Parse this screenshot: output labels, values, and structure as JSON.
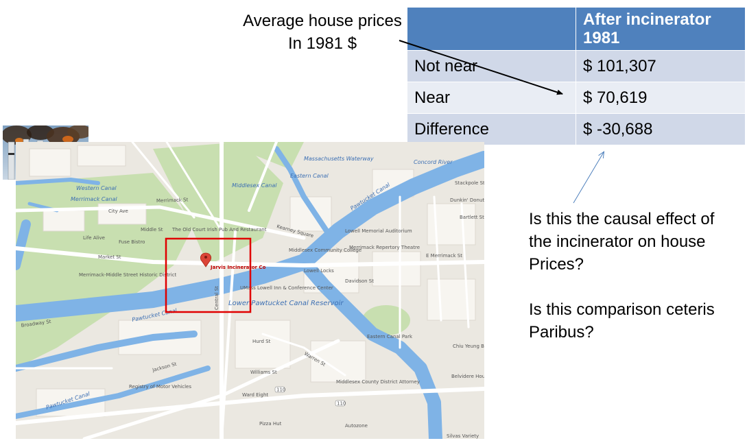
{
  "annotation": {
    "line1": "Average house prices",
    "line2": "In 1981 $"
  },
  "table": {
    "header_col1": "",
    "header_col2": "After incinerator 1981",
    "rows": [
      {
        "label": "Not near",
        "value": "$ 101,307"
      },
      {
        "label": "Near",
        "value": "$ 70,619"
      },
      {
        "label": "Difference",
        "value": "$ -30,688"
      }
    ],
    "header_color": "#4f81bd",
    "row_color_a": "#d0d8e8",
    "row_color_b": "#e9edf4"
  },
  "questions": {
    "q1": "Is this the causal effect of the incinerator on house Prices?",
    "q2": "Is this comparison ceteris Paribus?"
  },
  "map": {
    "highlight_color": "#e00000",
    "water_color": "#7fb3e6",
    "park_color": "#c8dfb0",
    "labels": {
      "concord_river": "Concord River",
      "mass_waterway": "Massachusetts Waterway",
      "eastern_canal": "Eastern Canal",
      "middlesex_canal": "Middlesex Canal",
      "merrimack_canal": "Merrimack Canal",
      "western_canal": "Western Canal",
      "pawtucket_canal_1": "Pawtucket Canal",
      "pawtucket_canal_2": "Pawtucket Canal",
      "pawtucket_canal_3": "Pawtucket Canal",
      "lower_pawtucket": "Lower Pawtucket Canal Reservoir",
      "jarvis": "Jarvis Incinerator Co",
      "merrimack_st": "Merrimack St",
      "market_st": "Market St",
      "middle_st": "Middle St",
      "e_merrimack": "E Merrimack St",
      "kearney_sq": "Kearney Square",
      "davidson_st": "Davidson St",
      "hurd_st": "Hurd St",
      "warren_st": "Warren St",
      "williams_st": "Williams St",
      "jackson_st": "Jackson St",
      "central_st": "Central St",
      "city_ave": "City Ave",
      "middlesex_cc": "Middlesex Community College",
      "lowell_memorial": "Lowell Memorial Auditorium",
      "merrimack_rep": "Merrimack Repertory Theatre",
      "lowell_locks": "Lowell Locks",
      "umass_inn": "UMass Lowell Inn & Conference Center",
      "eastern_canal_park": "Eastern Canal Park",
      "old_court": "The Old Court Irish Pub And Restaurant",
      "life_alive": "Life Alive",
      "fuse_bistro": "Fuse Bistro",
      "merrimack_middle": "Merrimack-Middle Street Historic District",
      "registry": "Registry of Motor Vehicles",
      "ward_eight": "Ward Eight",
      "pizza_hut": "Pizza Hut",
      "autozone": "Autozone",
      "middlesex_county": "Middlesex County District Attorney",
      "dunkin": "Dunkin' Donuts",
      "stackpole": "Stackpole St",
      "bartlett": "Bartlett St",
      "chiu_yeung": "Chiu Yeung Bakery",
      "belvidere": "Belvidere House",
      "silvas": "Silvas Variety",
      "broadway": "Broadway St",
      "route_110a": "110",
      "route_110b": "110"
    }
  }
}
